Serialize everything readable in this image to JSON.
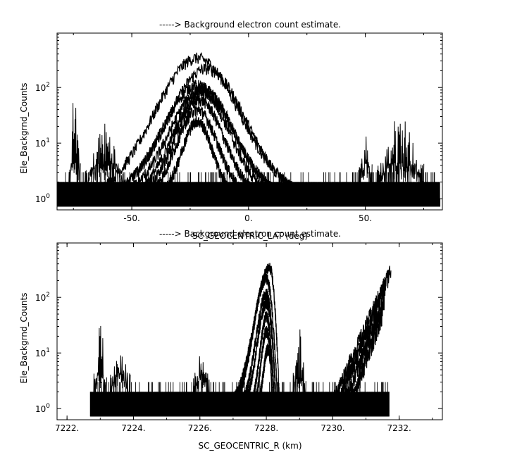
{
  "figure": {
    "panel_title_1": "-----> Background electron count estimate.",
    "panel_title_2": "-----> Background electron count estimate."
  },
  "chart_data": [
    {
      "type": "line",
      "title": "-----> Background electron count estimate.",
      "xlabel": "SC_GEOCENTRIC_LAT (deg)",
      "ylabel": "Ele_Backgrnd_Counts",
      "xlim": [
        -82,
        83
      ],
      "ylim": [
        0.63,
        950
      ],
      "yscale": "log",
      "xticks": [
        -50,
        0,
        50
      ],
      "xtick_labels": [
        "-50.",
        "0.",
        "50."
      ],
      "yticks": [
        1,
        10,
        100
      ],
      "ytick_base": "10",
      "ytick_exponents": [
        "0",
        "1",
        "2"
      ],
      "grid": false,
      "noise_floor": {
        "x_range": [
          -82,
          82
        ],
        "low": 1,
        "high": 3
      },
      "series": [
        {
          "peak_x": -22,
          "peak_y": 340,
          "halfwidth": 33
        },
        {
          "peak_x": -18,
          "peak_y": 220,
          "halfwidth": 30
        },
        {
          "peak_x": -22,
          "peak_y": 110,
          "halfwidth": 27
        },
        {
          "peak_x": -20,
          "peak_y": 95,
          "halfwidth": 25
        },
        {
          "peak_x": -20,
          "peak_y": 80,
          "halfwidth": 22
        },
        {
          "peak_x": -21,
          "peak_y": 60,
          "halfwidth": 19
        },
        {
          "peak_x": -22,
          "peak_y": 40,
          "halfwidth": 16
        },
        {
          "peak_x": -22,
          "peak_y": 25,
          "halfwidth": 12
        }
      ],
      "bursts": [
        {
          "x_range": [
            -77,
            -72
          ],
          "max": 95
        },
        {
          "x_range": [
            -70,
            -53
          ],
          "max": 25
        },
        {
          "x_range": [
            47,
            53
          ],
          "max": 15
        },
        {
          "x_range": [
            55,
            75
          ],
          "max": 35
        }
      ]
    },
    {
      "type": "line",
      "title": "-----> Background electron count estimate.",
      "xlabel": "SC_GEOCENTRIC_R (km)",
      "ylabel": "Ele_Backgrnd_Counts",
      "xlim": [
        7221.7,
        7233.3
      ],
      "ylim": [
        0.63,
        950
      ],
      "yscale": "log",
      "xticks": [
        7222,
        7224,
        7226,
        7228,
        7230,
        7232
      ],
      "xtick_labels": [
        "7222.",
        "7224.",
        "7226.",
        "7228.",
        "7230.",
        "7232."
      ],
      "yticks": [
        1,
        10,
        100
      ],
      "ytick_base": "10",
      "ytick_exponents": [
        "0",
        "1",
        "2"
      ],
      "grid": false,
      "noise_floor": {
        "x_range": [
          7222.7,
          7231.7
        ],
        "low": 1,
        "high": 3
      },
      "series": [
        {
          "x0": 7226.9,
          "peak_x": 7228.1,
          "x1": 7228.4,
          "peak_y": 340
        },
        {
          "x0": 7227.0,
          "peak_x": 7228.0,
          "x1": 7228.35,
          "peak_y": 220
        },
        {
          "x0": 7227.2,
          "peak_x": 7228.0,
          "x1": 7228.3,
          "peak_y": 120
        },
        {
          "x0": 7227.3,
          "peak_x": 7228.0,
          "x1": 7228.3,
          "peak_y": 80
        },
        {
          "x0": 7227.5,
          "peak_x": 7228.0,
          "x1": 7228.25,
          "peak_y": 45
        },
        {
          "x0": 7227.6,
          "peak_x": 7228.0,
          "x1": 7228.25,
          "peak_y": 25
        },
        {
          "x0": 7227.7,
          "peak_x": 7228.05,
          "x1": 7228.2,
          "peak_y": 12
        }
      ],
      "rising": [
        {
          "x0": 7229.9,
          "x1": 7231.75,
          "y_end": 320
        },
        {
          "x0": 7230.1,
          "x1": 7231.6,
          "y_end": 180
        },
        {
          "x0": 7230.3,
          "x1": 7231.55,
          "y_end": 100
        },
        {
          "x0": 7230.5,
          "x1": 7231.5,
          "y_end": 55
        }
      ],
      "bursts": [
        {
          "x_range": [
            7222.8,
            7223.2
          ],
          "max": 45
        },
        {
          "x_range": [
            7223.3,
            7223.9
          ],
          "max": 18
        },
        {
          "x_range": [
            7225.8,
            7226.3
          ],
          "max": 12
        },
        {
          "x_range": [
            7228.8,
            7229.2
          ],
          "max": 30
        }
      ]
    }
  ]
}
